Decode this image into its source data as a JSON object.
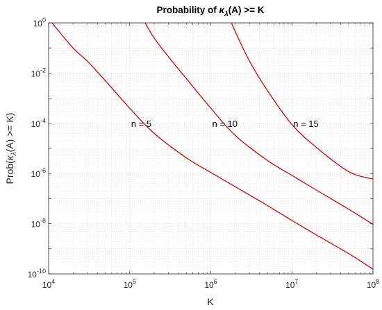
{
  "chart_data": {
    "type": "line",
    "title": {
      "prefix": "Probability of ",
      "kappa": "κ",
      "lambda": "λ",
      "suffix": "(A) >= K"
    },
    "xlabel": "K",
    "ylabel": {
      "prefix": "Prob(",
      "kappa": "κ",
      "lambda": "λ",
      "suffix": "(A) >= K)"
    },
    "x_scale": "log",
    "y_scale": "log",
    "xlim": [
      10000,
      100000000
    ],
    "ylim": [
      1e-10,
      1
    ],
    "grid": true,
    "x_ticks": [
      {
        "value": 10000,
        "base": "10",
        "exp": "4"
      },
      {
        "value": 100000,
        "base": "10",
        "exp": "5"
      },
      {
        "value": 1000000,
        "base": "10",
        "exp": "6"
      },
      {
        "value": 10000000,
        "base": "10",
        "exp": "7"
      },
      {
        "value": 100000000,
        "base": "10",
        "exp": "8"
      }
    ],
    "y_ticks": [
      {
        "value": 1e-10,
        "base": "10",
        "exp": "-10"
      },
      {
        "value": 1e-08,
        "base": "10",
        "exp": "-8"
      },
      {
        "value": 1e-06,
        "base": "10",
        "exp": "-6"
      },
      {
        "value": 0.0001,
        "base": "10",
        "exp": "-4"
      },
      {
        "value": 0.01,
        "base": "10",
        "exp": "-2"
      },
      {
        "value": 1,
        "base": "10",
        "exp": "0"
      }
    ],
    "series": [
      {
        "color": "#e00000",
        "x": [
          11000,
          20000,
          30000,
          50000,
          100000,
          200000,
          500000,
          1000000,
          2000000,
          5000000,
          10000000,
          20000000,
          50000000,
          100000000
        ],
        "y": [
          1,
          0.1,
          0.03,
          0.005,
          0.0004,
          4e-05,
          4.2e-06,
          1.1e-06,
          3e-07,
          5.3e-08,
          1.35e-08,
          3.6e-09,
          6.5e-10,
          1.55e-10
        ]
      },
      {
        "color": "#e00000",
        "x": [
          155000,
          200000,
          300000,
          500000,
          1000000,
          2000000,
          5000000,
          10000000,
          20000000,
          50000000,
          100000000
        ],
        "y": [
          1,
          0.25,
          0.045,
          0.006,
          0.0004,
          3.3e-05,
          3.3e-06,
          8.5e-07,
          2.2e-07,
          3.8e-08,
          9.5e-09
        ]
      },
      {
        "color": "#e00000",
        "x": [
          1800000,
          2000000,
          3000000,
          5000000,
          10000000,
          20000000,
          50000000,
          100000000
        ],
        "y": [
          1,
          0.45,
          0.03,
          0.002,
          9e-05,
          1.1e-05,
          1.2e-06,
          6e-07
        ]
      }
    ],
    "annotations": [
      {
        "text": "n = 5",
        "x": 100000,
        "y": 0.0001
      },
      {
        "text": "n = 10",
        "x": 1000000,
        "y": 0.0001
      },
      {
        "text": "n = 15",
        "x": 10000000,
        "y": 0.0001
      }
    ],
    "colors": {
      "axis": "#262626",
      "grid": "#d9d9d9",
      "curve": "#e00000"
    }
  }
}
